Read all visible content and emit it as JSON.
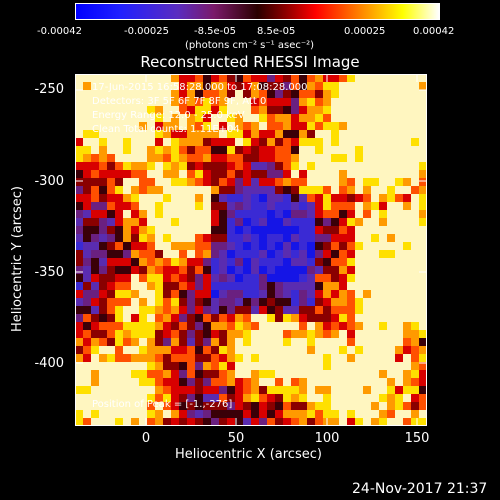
{
  "colorbar": {
    "ticks": [
      "-0.00042",
      "-0.00025",
      "-8.5e-05",
      "8.5e-05",
      "0.00025",
      "0.00042"
    ],
    "units": "(photons cm⁻² s⁻¹ asec⁻²)",
    "colors": [
      "#0000ff",
      "#ff0000",
      "#ffff00",
      "#ffffff"
    ]
  },
  "title": "Reconstructed RHESSI Image",
  "overlay": {
    "time": "17-Jun-2015 16:58:28.000 to 17:08:28.000",
    "detectors": "Detectors: 3F 5F 6F 7F 8F 9F, Att 0",
    "energy": "Energy Range: 12.0 - 25.0 keV",
    "counts": "Clean   Total counts: 1.11E+04",
    "peak": "Position of Peak = [-1.,-276]"
  },
  "axes": {
    "y_label": "Heliocentric Y (arcsec)",
    "x_label": "Heliocentric X (arcsec)",
    "y_ticks": [
      "-250",
      "-300",
      "-350",
      "-400"
    ],
    "x_ticks": [
      "0",
      "50",
      "100",
      "150"
    ]
  },
  "datestamp": "24-Nov-2017 21:37"
}
